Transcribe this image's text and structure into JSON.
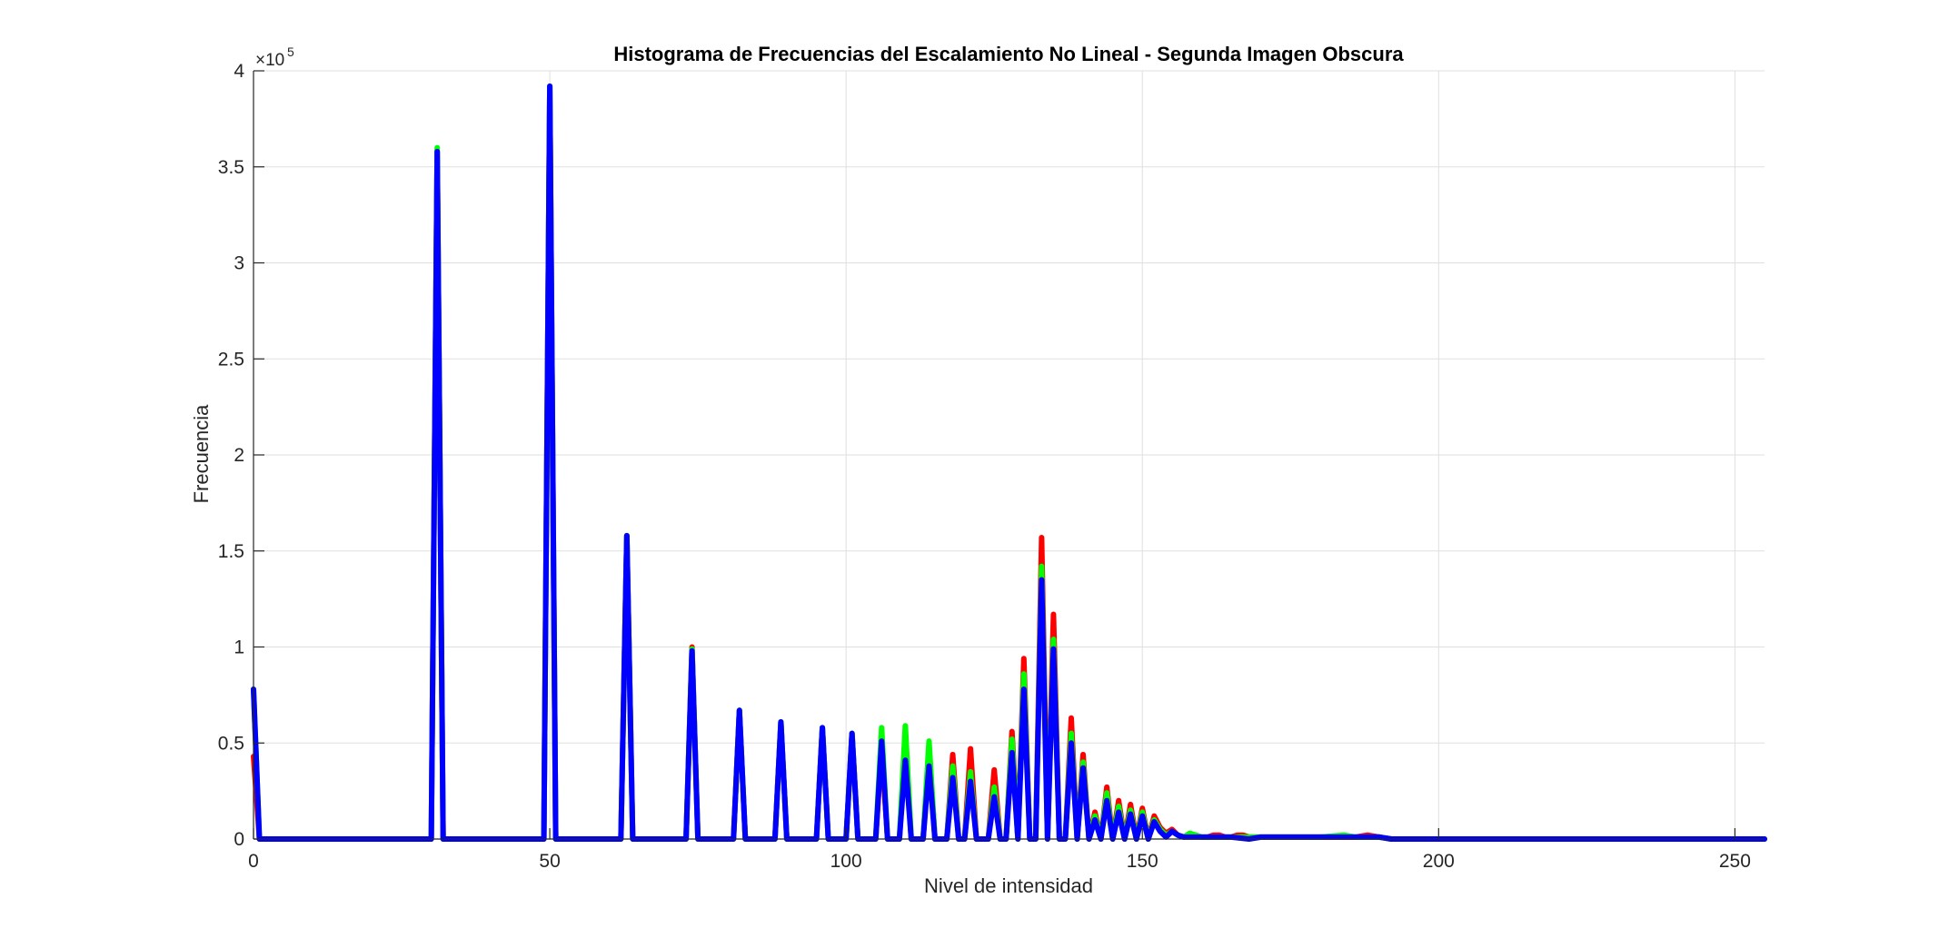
{
  "chart_data": {
    "type": "line",
    "title": "Histograma de Frecuencias del Escalamiento No Lineal - Segunda Imagen Obscura",
    "xlabel": "Nivel de intensidad",
    "ylabel": "Frecuencia",
    "exponent_base": "×10",
    "exponent_power": "5",
    "xlim": [
      0,
      255
    ],
    "ylim": [
      0,
      4
    ],
    "y_scale_factor": 100000,
    "x_ticks": [
      0,
      50,
      100,
      150,
      200,
      250
    ],
    "x_tick_labels": [
      "0",
      "50",
      "100",
      "150",
      "200",
      "250"
    ],
    "y_ticks": [
      0,
      0.5,
      1,
      1.5,
      2,
      2.5,
      3,
      3.5,
      4
    ],
    "y_tick_labels": [
      "0",
      "0.5",
      "1",
      "1.5",
      "2",
      "2.5",
      "3",
      "3.5",
      "4"
    ],
    "grid": true,
    "series": [
      {
        "color": "#ff0000",
        "points": [
          [
            0,
            0.43
          ],
          [
            1,
            0
          ],
          [
            30,
            0
          ],
          [
            31,
            3.58
          ],
          [
            32,
            0
          ],
          [
            49,
            0
          ],
          [
            50,
            3.92
          ],
          [
            51,
            0
          ],
          [
            62,
            0
          ],
          [
            63,
            1.58
          ],
          [
            64,
            0
          ],
          [
            73,
            0
          ],
          [
            74,
            1.0
          ],
          [
            75,
            0
          ],
          [
            81,
            0
          ],
          [
            82,
            0.67
          ],
          [
            83,
            0
          ],
          [
            88,
            0
          ],
          [
            89,
            0.61
          ],
          [
            90,
            0
          ],
          [
            95,
            0
          ],
          [
            96,
            0.58
          ],
          [
            97,
            0
          ],
          [
            100,
            0
          ],
          [
            101,
            0.55
          ],
          [
            102,
            0
          ],
          [
            105,
            0
          ],
          [
            106,
            0.47
          ],
          [
            107,
            0
          ],
          [
            109,
            0
          ],
          [
            110,
            0.5
          ],
          [
            111,
            0
          ],
          [
            113,
            0
          ],
          [
            114,
            0.47
          ],
          [
            115,
            0
          ],
          [
            117,
            0
          ],
          [
            118,
            0.44
          ],
          [
            119,
            0
          ],
          [
            120,
            0
          ],
          [
            121,
            0.47
          ],
          [
            122,
            0
          ],
          [
            124,
            0
          ],
          [
            125,
            0.36
          ],
          [
            126,
            0
          ],
          [
            127,
            0
          ],
          [
            128,
            0.56
          ],
          [
            129,
            0
          ],
          [
            130,
            0.94
          ],
          [
            131,
            0
          ],
          [
            132,
            0
          ],
          [
            133,
            1.57
          ],
          [
            134,
            0
          ],
          [
            135,
            1.17
          ],
          [
            136,
            0
          ],
          [
            137,
            0
          ],
          [
            138,
            0.63
          ],
          [
            139,
            0
          ],
          [
            140,
            0.44
          ],
          [
            141,
            0
          ],
          [
            142,
            0.14
          ],
          [
            143,
            0
          ],
          [
            144,
            0.27
          ],
          [
            145,
            0
          ],
          [
            146,
            0.2
          ],
          [
            147,
            0
          ],
          [
            148,
            0.18
          ],
          [
            149,
            0
          ],
          [
            150,
            0.16
          ],
          [
            151,
            0
          ],
          [
            152,
            0.12
          ],
          [
            153,
            0.06
          ],
          [
            154,
            0.03
          ],
          [
            155,
            0.05
          ],
          [
            156,
            0.02
          ],
          [
            157,
            0.01
          ],
          [
            158,
            0.02
          ],
          [
            159,
            0.02
          ],
          [
            160,
            0.01
          ],
          [
            161,
            0.01
          ],
          [
            162,
            0.02
          ],
          [
            163,
            0.02
          ],
          [
            164,
            0.01
          ],
          [
            165,
            0.01
          ],
          [
            166,
            0.02
          ],
          [
            167,
            0.02
          ],
          [
            168,
            0.01
          ],
          [
            170,
            0.01
          ],
          [
            175,
            0.01
          ],
          [
            180,
            0.01
          ],
          [
            184,
            0.01
          ],
          [
            186,
            0.01
          ],
          [
            188,
            0.02
          ],
          [
            190,
            0.01
          ],
          [
            192,
            0
          ],
          [
            200,
            0
          ],
          [
            255,
            0
          ]
        ]
      },
      {
        "color": "#00ff00",
        "points": [
          [
            0,
            0.78
          ],
          [
            1,
            0
          ],
          [
            30,
            0
          ],
          [
            31,
            3.6
          ],
          [
            32,
            0
          ],
          [
            49,
            0
          ],
          [
            50,
            3.92
          ],
          [
            51,
            0
          ],
          [
            62,
            0
          ],
          [
            63,
            1.58
          ],
          [
            64,
            0
          ],
          [
            73,
            0
          ],
          [
            74,
            0.99
          ],
          [
            75,
            0
          ],
          [
            81,
            0
          ],
          [
            82,
            0.67
          ],
          [
            83,
            0
          ],
          [
            88,
            0
          ],
          [
            89,
            0.61
          ],
          [
            90,
            0
          ],
          [
            95,
            0
          ],
          [
            96,
            0.58
          ],
          [
            97,
            0
          ],
          [
            100,
            0
          ],
          [
            101,
            0.55
          ],
          [
            102,
            0
          ],
          [
            105,
            0
          ],
          [
            106,
            0.58
          ],
          [
            107,
            0
          ],
          [
            109,
            0
          ],
          [
            110,
            0.59
          ],
          [
            111,
            0
          ],
          [
            113,
            0
          ],
          [
            114,
            0.51
          ],
          [
            115,
            0
          ],
          [
            117,
            0
          ],
          [
            118,
            0.38
          ],
          [
            119,
            0
          ],
          [
            120,
            0
          ],
          [
            121,
            0.35
          ],
          [
            122,
            0
          ],
          [
            124,
            0
          ],
          [
            125,
            0.27
          ],
          [
            126,
            0
          ],
          [
            127,
            0
          ],
          [
            128,
            0.52
          ],
          [
            129,
            0
          ],
          [
            130,
            0.86
          ],
          [
            131,
            0
          ],
          [
            132,
            0
          ],
          [
            133,
            1.42
          ],
          [
            134,
            0
          ],
          [
            135,
            1.04
          ],
          [
            136,
            0
          ],
          [
            137,
            0
          ],
          [
            138,
            0.55
          ],
          [
            139,
            0
          ],
          [
            140,
            0.4
          ],
          [
            141,
            0
          ],
          [
            142,
            0.12
          ],
          [
            143,
            0
          ],
          [
            144,
            0.24
          ],
          [
            145,
            0
          ],
          [
            146,
            0.17
          ],
          [
            147,
            0
          ],
          [
            148,
            0.15
          ],
          [
            149,
            0
          ],
          [
            150,
            0.14
          ],
          [
            151,
            0
          ],
          [
            152,
            0.1
          ],
          [
            153,
            0.05
          ],
          [
            154,
            0.02
          ],
          [
            155,
            0.04
          ],
          [
            156,
            0.02
          ],
          [
            157,
            0.01
          ],
          [
            158,
            0.03
          ],
          [
            159,
            0.02
          ],
          [
            160,
            0.01
          ],
          [
            162,
            0.01
          ],
          [
            164,
            0.01
          ],
          [
            168,
            0.01
          ],
          [
            170,
            0.01
          ],
          [
            175,
            0.01
          ],
          [
            180,
            0.01
          ],
          [
            184,
            0.02
          ],
          [
            186,
            0.01
          ],
          [
            188,
            0.01
          ],
          [
            190,
            0.01
          ],
          [
            192,
            0
          ],
          [
            200,
            0
          ],
          [
            255,
            0
          ]
        ]
      },
      {
        "color": "#0000ff",
        "points": [
          [
            0,
            0.78
          ],
          [
            1,
            0
          ],
          [
            30,
            0
          ],
          [
            31,
            3.58
          ],
          [
            32,
            0
          ],
          [
            49,
            0
          ],
          [
            50,
            3.92
          ],
          [
            51,
            0
          ],
          [
            62,
            0
          ],
          [
            63,
            1.58
          ],
          [
            64,
            0
          ],
          [
            73,
            0
          ],
          [
            74,
            0.98
          ],
          [
            75,
            0
          ],
          [
            81,
            0
          ],
          [
            82,
            0.67
          ],
          [
            83,
            0
          ],
          [
            88,
            0
          ],
          [
            89,
            0.61
          ],
          [
            90,
            0
          ],
          [
            95,
            0
          ],
          [
            96,
            0.58
          ],
          [
            97,
            0
          ],
          [
            100,
            0
          ],
          [
            101,
            0.55
          ],
          [
            102,
            0
          ],
          [
            105,
            0
          ],
          [
            106,
            0.51
          ],
          [
            107,
            0
          ],
          [
            109,
            0
          ],
          [
            110,
            0.41
          ],
          [
            111,
            0
          ],
          [
            113,
            0
          ],
          [
            114,
            0.38
          ],
          [
            115,
            0
          ],
          [
            117,
            0
          ],
          [
            118,
            0.32
          ],
          [
            119,
            0
          ],
          [
            120,
            0
          ],
          [
            121,
            0.3
          ],
          [
            122,
            0
          ],
          [
            124,
            0
          ],
          [
            125,
            0.22
          ],
          [
            126,
            0
          ],
          [
            127,
            0
          ],
          [
            128,
            0.45
          ],
          [
            129,
            0
          ],
          [
            130,
            0.78
          ],
          [
            131,
            0
          ],
          [
            132,
            0
          ],
          [
            133,
            1.35
          ],
          [
            134,
            0
          ],
          [
            135,
            0.99
          ],
          [
            136,
            0
          ],
          [
            137,
            0
          ],
          [
            138,
            0.5
          ],
          [
            139,
            0
          ],
          [
            140,
            0.37
          ],
          [
            141,
            0
          ],
          [
            142,
            0.1
          ],
          [
            143,
            0
          ],
          [
            144,
            0.2
          ],
          [
            145,
            0
          ],
          [
            146,
            0.14
          ],
          [
            147,
            0
          ],
          [
            148,
            0.13
          ],
          [
            149,
            0
          ],
          [
            150,
            0.12
          ],
          [
            151,
            0
          ],
          [
            152,
            0.09
          ],
          [
            153,
            0.04
          ],
          [
            154,
            0.01
          ],
          [
            155,
            0.04
          ],
          [
            156,
            0.02
          ],
          [
            157,
            0.01
          ],
          [
            158,
            0.01
          ],
          [
            160,
            0.01
          ],
          [
            162,
            0.01
          ],
          [
            165,
            0.01
          ],
          [
            168,
            0
          ],
          [
            170,
            0.01
          ],
          [
            175,
            0.01
          ],
          [
            180,
            0.01
          ],
          [
            184,
            0.01
          ],
          [
            188,
            0.01
          ],
          [
            190,
            0.01
          ],
          [
            192,
            0
          ],
          [
            200,
            0
          ],
          [
            255,
            0
          ]
        ]
      }
    ]
  }
}
